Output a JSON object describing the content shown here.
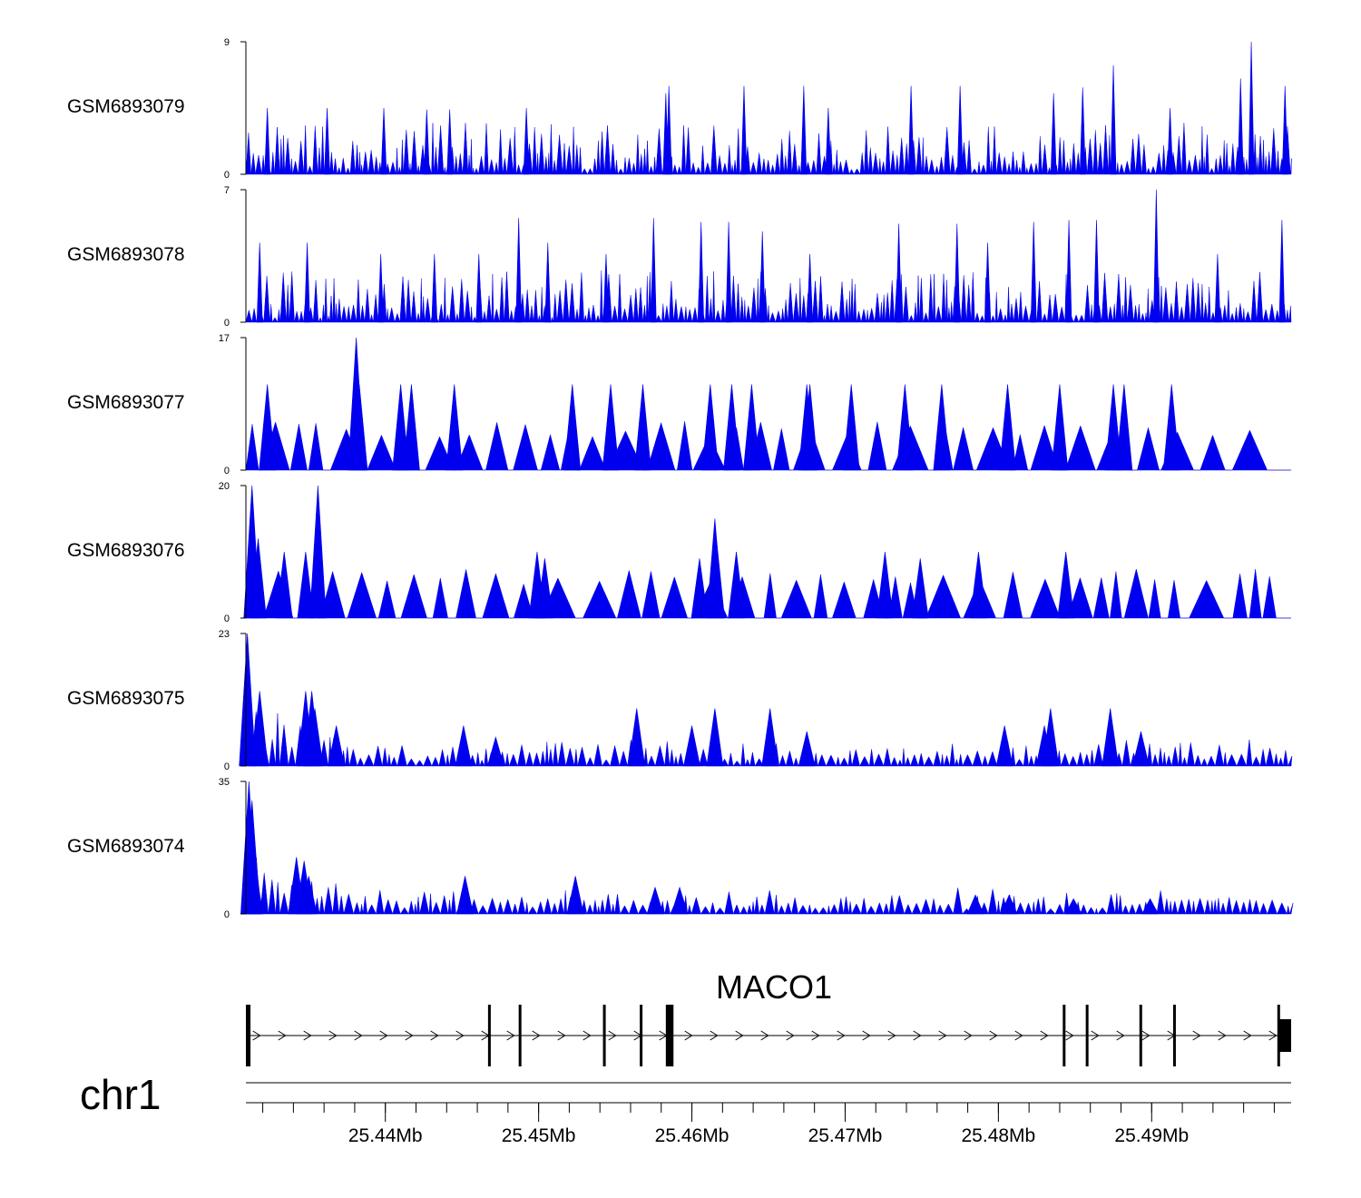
{
  "chart_data": {
    "type": "area",
    "title": "",
    "chromosome": "chr1",
    "xlim_mb": [
      25.4309,
      25.4991
    ],
    "fill_color": "#0000ee",
    "series": [
      {
        "name": "GSM6893079",
        "ylim": [
          0,
          9
        ],
        "y_ticks": [
          "0",
          "9"
        ],
        "seed": 79,
        "style": "dense",
        "peaks": [
          [
            25.4323,
            4.5
          ],
          [
            25.4362,
            4.5
          ],
          [
            25.4399,
            4.5
          ],
          [
            25.4427,
            4.4
          ],
          [
            25.4442,
            4.4
          ],
          [
            25.4492,
            4.5
          ],
          [
            25.4583,
            5.5
          ],
          [
            25.4585,
            6
          ],
          [
            25.4634,
            6
          ],
          [
            25.4673,
            6
          ],
          [
            25.4689,
            4.5
          ],
          [
            25.4743,
            6
          ],
          [
            25.4775,
            6
          ],
          [
            25.4836,
            5.5
          ],
          [
            25.4855,
            5.9
          ],
          [
            25.4875,
            7.4
          ],
          [
            25.4912,
            4.5
          ],
          [
            25.4958,
            6.5
          ],
          [
            25.4965,
            9
          ],
          [
            25.4987,
            6
          ]
        ]
      },
      {
        "name": "GSM6893078",
        "ylim": [
          0,
          7
        ],
        "y_ticks": [
          "0",
          "7"
        ],
        "seed": 78,
        "style": "dense",
        "peaks": [
          [
            25.4318,
            4.2
          ],
          [
            25.4349,
            4.2
          ],
          [
            25.4397,
            3.6
          ],
          [
            25.4432,
            3.6
          ],
          [
            25.4461,
            3.6
          ],
          [
            25.4487,
            5.5
          ],
          [
            25.4506,
            4.2
          ],
          [
            25.4544,
            3.6
          ],
          [
            25.4575,
            5.5
          ],
          [
            25.4606,
            5.3
          ],
          [
            25.4624,
            5.3
          ],
          [
            25.4646,
            4.8
          ],
          [
            25.4677,
            3.6
          ],
          [
            25.4735,
            5.2
          ],
          [
            25.4773,
            5.2
          ],
          [
            25.4793,
            4.2
          ],
          [
            25.4823,
            5.3
          ],
          [
            25.4846,
            5.4
          ],
          [
            25.4864,
            5.4
          ],
          [
            25.4903,
            7
          ],
          [
            25.4943,
            3.6
          ],
          [
            25.4985,
            5.4
          ]
        ]
      },
      {
        "name": "GSM6893077",
        "ylim": [
          0,
          17
        ],
        "y_ticks": [
          "0",
          "17"
        ],
        "seed": 77,
        "style": "sparse",
        "peaks": [
          [
            25.4323,
            11
          ],
          [
            25.4381,
            17
          ],
          [
            25.4383,
            11
          ],
          [
            25.441,
            11
          ],
          [
            25.4417,
            11
          ],
          [
            25.4445,
            11
          ],
          [
            25.4522,
            11
          ],
          [
            25.4547,
            11
          ],
          [
            25.4568,
            11
          ],
          [
            25.4612,
            11
          ],
          [
            25.4626,
            11
          ],
          [
            25.4639,
            11
          ],
          [
            25.4675,
            11
          ],
          [
            25.4677,
            11
          ],
          [
            25.4704,
            11
          ],
          [
            25.4739,
            11
          ],
          [
            25.4763,
            11
          ],
          [
            25.4806,
            11
          ],
          [
            25.484,
            11
          ],
          [
            25.4875,
            11
          ],
          [
            25.4882,
            11
          ],
          [
            25.4913,
            11
          ]
        ]
      },
      {
        "name": "GSM6893076",
        "ylim": [
          0,
          20
        ],
        "y_ticks": [
          "0",
          "20"
        ],
        "seed": 76,
        "style": "sparse",
        "peaks": [
          [
            25.4313,
            20
          ],
          [
            25.4317,
            12
          ],
          [
            25.4334,
            10
          ],
          [
            25.4348,
            10
          ],
          [
            25.4356,
            20
          ],
          [
            25.4499,
            10
          ],
          [
            25.4504,
            9
          ],
          [
            25.4605,
            9
          ],
          [
            25.4615,
            15
          ],
          [
            25.4616,
            12
          ],
          [
            25.4629,
            10
          ],
          [
            25.4726,
            10
          ],
          [
            25.4749,
            9
          ],
          [
            25.4787,
            10
          ],
          [
            25.4844,
            10
          ]
        ]
      },
      {
        "name": "GSM6893075",
        "ylim": [
          0,
          23
        ],
        "y_ticks": [
          "0",
          "23"
        ],
        "seed": 75,
        "style": "decay",
        "peaks": [
          [
            25.431,
            23
          ],
          [
            25.4318,
            13
          ],
          [
            25.4348,
            13
          ],
          [
            25.4352,
            13
          ],
          [
            25.4354,
            10
          ],
          [
            25.4368,
            7
          ],
          [
            25.4451,
            7
          ],
          [
            25.4472,
            5
          ],
          [
            25.4564,
            10
          ],
          [
            25.46,
            7
          ],
          [
            25.4615,
            10
          ],
          [
            25.4651,
            10
          ],
          [
            25.4675,
            6
          ],
          [
            25.4804,
            7
          ],
          [
            25.483,
            7
          ],
          [
            25.4834,
            10
          ],
          [
            25.4873,
            10
          ],
          [
            25.4893,
            6
          ]
        ]
      },
      {
        "name": "GSM6893074",
        "ylim": [
          0,
          35
        ],
        "y_ticks": [
          "0",
          "35"
        ],
        "seed": 74,
        "style": "decay",
        "peaks": [
          [
            25.4311,
            35
          ],
          [
            25.4313,
            30
          ],
          [
            25.4314,
            20
          ],
          [
            25.4315,
            12
          ],
          [
            25.4342,
            15
          ],
          [
            25.4347,
            14
          ],
          [
            25.435,
            10
          ],
          [
            25.4452,
            10
          ],
          [
            25.4524,
            10
          ],
          [
            25.4576,
            7
          ],
          [
            25.4592,
            7
          ],
          [
            25.4785,
            5
          ],
          [
            25.4807,
            5
          ],
          [
            25.4849,
            4
          ],
          [
            25.4899,
            4
          ]
        ]
      }
    ],
    "gene": {
      "name": "MACO1",
      "strand": "+",
      "start_mb": 25.431,
      "end_mb": 25.4991,
      "exons_mb": [
        [
          25.4309,
          25.431
        ],
        [
          25.4309,
          25.4312
        ],
        [
          25.4467,
          25.4468
        ],
        [
          25.4487,
          25.4488
        ],
        [
          25.4542,
          25.4543
        ],
        [
          25.4566,
          25.4567
        ],
        [
          25.4583,
          25.4588
        ],
        [
          25.4842,
          25.4843
        ],
        [
          25.4857,
          25.4858
        ],
        [
          25.4892,
          25.4893
        ],
        [
          25.4914,
          25.4915
        ],
        [
          25.4982,
          25.4983
        ],
        [
          25.4983,
          25.4991
        ]
      ]
    },
    "x_axis": {
      "tick_labels": [
        "25.44Mb",
        "25.45Mb",
        "25.46Mb",
        "25.47Mb",
        "25.48Mb",
        "25.49Mb"
      ],
      "tick_values_mb": [
        25.44,
        25.45,
        25.46,
        25.47,
        25.48,
        25.49
      ],
      "minor_step_mb": 0.002
    }
  }
}
